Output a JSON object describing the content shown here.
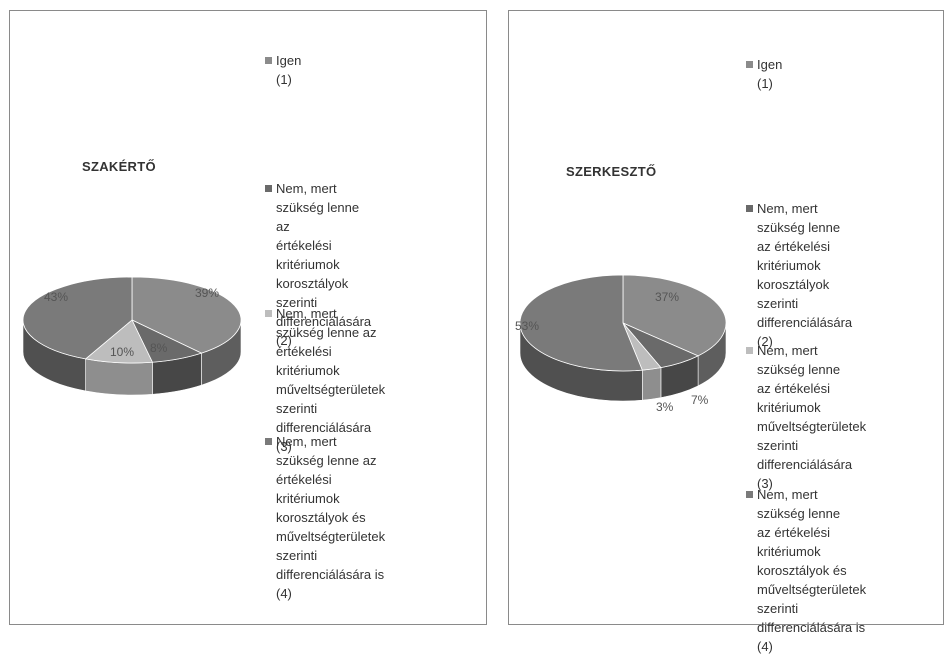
{
  "chart_data": [
    {
      "type": "pie",
      "title": "SZAKÉRTŐ",
      "start_angle_deg": 0,
      "slices": [
        {
          "label": "Igen (1)",
          "value": 39,
          "display": "39%",
          "color_top": "#8b8b8b",
          "color_side": "#5e5e5e"
        },
        {
          "label": "Nem, mert szükség lenne az\nértékelési kritériumok\nkorosztályok szerinti\ndifferenciálására (2)",
          "value": 8,
          "display": "8%",
          "color_top": "#6a6a6a",
          "color_side": "#474747"
        },
        {
          "label": "Nem, mert szükség lenne az\nértékelési kritériumok\nműveltségterületek szerinti\ndifferenciálására (3)",
          "value": 10,
          "display": "10%",
          "color_top": "#bdbdbd",
          "color_side": "#8e8e8e"
        },
        {
          "label": "Nem, mert szükség lenne az\nértékelési kritériumok\nkorosztályok és\nműveltségterületek szerinti\ndifferenciálására is (4)",
          "value": 43,
          "display": "43%",
          "color_top": "#7a7a7a",
          "color_side": "#505050"
        }
      ],
      "legend_position": "right"
    },
    {
      "type": "pie",
      "title": "SZERKESZTŐ",
      "start_angle_deg": 0,
      "slices": [
        {
          "label": "Igen (1)",
          "value": 37,
          "display": "37%",
          "color_top": "#8b8b8b",
          "color_side": "#5e5e5e"
        },
        {
          "label": "Nem, mert szükség lenne\naz értékelési kritériumok\nkorosztályok szerinti\ndifferenciálására (2)",
          "value": 7,
          "display": "7%",
          "color_top": "#6a6a6a",
          "color_side": "#474747"
        },
        {
          "label": "Nem, mert szükség lenne\naz értékelési kritériumok\nműveltségterületek\nszerinti differenciálására\n(3)",
          "value": 3,
          "display": "3%",
          "color_top": "#bdbdbd",
          "color_side": "#8e8e8e"
        },
        {
          "label": "Nem, mert szükség lenne\naz értékelési kritériumok\nkorosztályok és\nműveltségterületek\nszerinti differenciálására is\n(4)",
          "value": 53,
          "display": "53%",
          "color_top": "#7a7a7a",
          "color_side": "#505050"
        }
      ],
      "legend_position": "right"
    }
  ]
}
